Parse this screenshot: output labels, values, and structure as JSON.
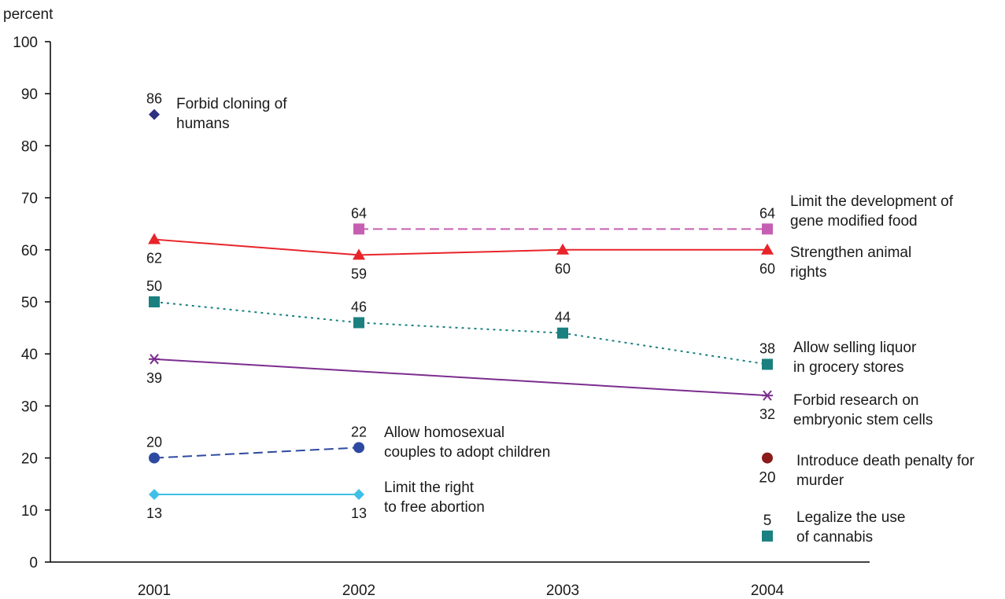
{
  "chart_data": {
    "type": "line",
    "ylabel": "percent",
    "ylim": [
      0,
      100
    ],
    "y_ticks": [
      "0",
      "10",
      "20",
      "30",
      "40",
      "50",
      "60",
      "70",
      "80",
      "90",
      "100"
    ],
    "categories": [
      "2001",
      "2002",
      "2003",
      "2004"
    ],
    "grid": false,
    "series": [
      {
        "name_lines": [
          "Forbid cloning of",
          "humans"
        ],
        "color": "#2e3080",
        "marker": "diamond",
        "line": "none",
        "points": [
          {
            "x": "2001",
            "y": 86,
            "label": "86"
          }
        ]
      },
      {
        "name_lines": [
          "Limit the development of",
          "gene modified food"
        ],
        "color": "#c65fb2",
        "marker": "square",
        "line": "dashed",
        "points": [
          {
            "x": "2002",
            "y": 64,
            "label": "64"
          },
          {
            "x": "2004",
            "y": 64,
            "label": "64"
          }
        ]
      },
      {
        "name_lines": [
          "Strengthen animal",
          "rights"
        ],
        "color": "#e8242a",
        "marker": "triangle",
        "line": "solid",
        "points": [
          {
            "x": "2001",
            "y": 62,
            "label": "62"
          },
          {
            "x": "2002",
            "y": 59,
            "label": "59"
          },
          {
            "x": "2003",
            "y": 60,
            "label": "60"
          },
          {
            "x": "2004",
            "y": 60,
            "label": "60"
          }
        ]
      },
      {
        "name_lines": [
          "Allow selling liquor",
          "in grocery stores"
        ],
        "color": "#1a8080",
        "marker": "square",
        "line": "dotted",
        "points": [
          {
            "x": "2001",
            "y": 50,
            "label": "50"
          },
          {
            "x": "2002",
            "y": 46,
            "label": "46"
          },
          {
            "x": "2003",
            "y": 44,
            "label": "44"
          },
          {
            "x": "2004",
            "y": 38,
            "label": "38"
          }
        ]
      },
      {
        "name_lines": [
          "Forbid research on",
          "embryonic stem cells"
        ],
        "color": "#7b2d8e",
        "marker": "asterisk",
        "line": "solid",
        "points": [
          {
            "x": "2001",
            "y": 39,
            "label": "39"
          },
          {
            "x": "2004",
            "y": 32,
            "label": "32"
          }
        ]
      },
      {
        "name_lines": [
          "Allow homosexual",
          "couples to adopt children"
        ],
        "color": "#2e4aa0",
        "marker": "circle",
        "line": "dashed",
        "points": [
          {
            "x": "2001",
            "y": 20,
            "label": "20"
          },
          {
            "x": "2002",
            "y": 22,
            "label": "22"
          }
        ]
      },
      {
        "name_lines": [
          "Limit the right",
          "to free abortion"
        ],
        "color": "#3fbfe8",
        "marker": "diamond",
        "line": "solid",
        "points": [
          {
            "x": "2001",
            "y": 13,
            "label": "13"
          },
          {
            "x": "2002",
            "y": 13,
            "label": "13"
          }
        ]
      },
      {
        "name_lines": [
          "Introduce death penalty for",
          "murder"
        ],
        "color": "#8b1a1a",
        "marker": "circle",
        "line": "none",
        "points": [
          {
            "x": "2004",
            "y": 20,
            "label": "20"
          }
        ]
      },
      {
        "name_lines": [
          "Legalize the use",
          "of cannabis"
        ],
        "color": "#1a8080",
        "marker": "square",
        "line": "none",
        "points": [
          {
            "x": "2004",
            "y": 5,
            "label": "5"
          }
        ]
      }
    ]
  }
}
